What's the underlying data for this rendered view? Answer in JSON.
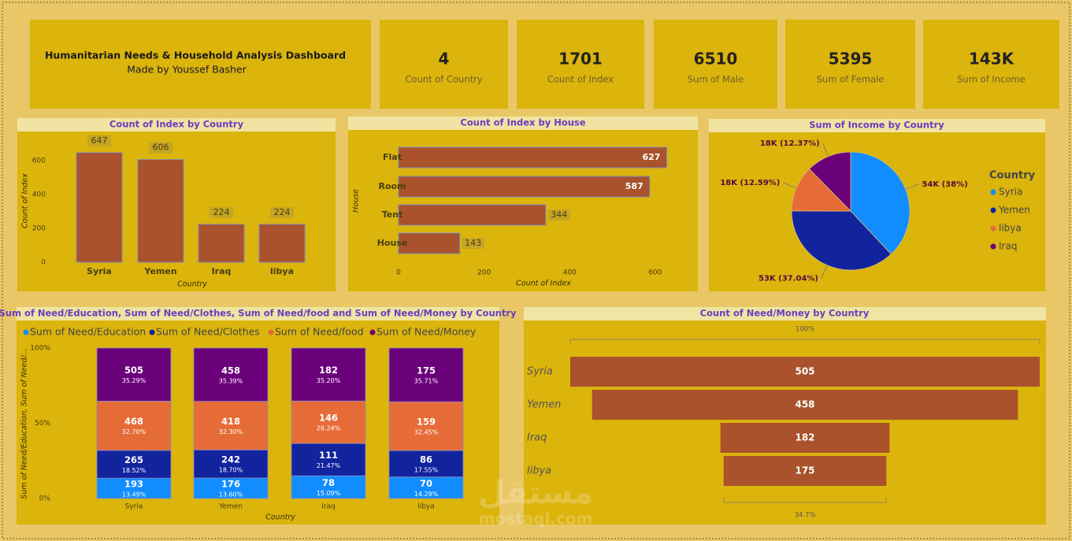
{
  "header": {
    "title": "Humanitarian Needs & Household Analysis Dashboard",
    "subtitle": "Made by Youssef Basher"
  },
  "kpis": [
    {
      "value": 4,
      "label": "Count of Country"
    },
    {
      "value": 1701,
      "label": "Count of Index"
    },
    {
      "value": 6510,
      "label": "Sum of Male"
    },
    {
      "value": 5395,
      "label": "Sum of Female"
    },
    {
      "value": 143000,
      "value_label": "143K",
      "label": "Sum of Income"
    }
  ],
  "watermark": [
    "مستقل",
    "mostaql.com"
  ],
  "chart_data": [
    {
      "type": "bar",
      "title": "Count of Index by Country",
      "categories": [
        "Syria",
        "Yemen",
        "Iraq",
        "libya"
      ],
      "values": [
        647,
        606,
        224,
        224
      ],
      "color": "#a9522b",
      "ylim": [
        0,
        700
      ],
      "yticks": [
        0,
        200,
        400,
        600
      ],
      "x_label": "Country",
      "y_label": "Count of Index"
    },
    {
      "type": "hbar",
      "title": "Count of Index by House",
      "categories": [
        "Flat",
        "Room",
        "Tent",
        "House"
      ],
      "values": [
        627,
        587,
        344,
        143
      ],
      "color": "#a9522b",
      "xlim": [
        0,
        650
      ],
      "xticks": [
        0,
        200,
        400,
        600
      ],
      "x_label": "Count of Index",
      "y_label": "House"
    },
    {
      "type": "pie",
      "title": "Sum of Income by Country",
      "categories": [
        "Syria",
        "Yemen",
        "libya",
        "Iraq"
      ],
      "values": [
        38,
        37.04,
        12.59,
        12.37
      ],
      "value_labels": [
        "54K (38%)",
        "53K (37.04%)",
        "18K (12.59%)",
        "18K (12.37%)"
      ],
      "colors": [
        "#118dff",
        "#12239e",
        "#e66c37",
        "#6b007b"
      ],
      "legend_title": "Country"
    },
    {
      "type": "stacked100",
      "title": "Sum of Need/Education, Sum of Need/Clothes, Sum of Need/food and Sum of Need/Money by Country",
      "categories": [
        "Syria",
        "Yemen",
        "Iraq",
        "libya"
      ],
      "series": [
        {
          "name": "Sum of Need/Education",
          "color": "#118dff",
          "values": [
            193,
            176,
            78,
            70
          ],
          "share_labels": [
            "13.49%",
            "13.60%",
            "15.09%",
            "14.29%"
          ]
        },
        {
          "name": "Sum of Need/Clothes",
          "color": "#12239e",
          "values": [
            265,
            242,
            111,
            86
          ],
          "share_labels": [
            "18.52%",
            "18.70%",
            "21.47%",
            "17.55%"
          ]
        },
        {
          "name": "Sum of Need/food",
          "color": "#e66c37",
          "values": [
            468,
            418,
            146,
            159
          ],
          "share_labels": [
            "32.70%",
            "32.30%",
            "28.24%",
            "32.45%"
          ]
        },
        {
          "name": "Sum of Need/Money",
          "color": "#6b007b",
          "values": [
            505,
            458,
            182,
            175
          ],
          "share_labels": [
            "35.29%",
            "35.39%",
            "35.20%",
            "35.71%"
          ]
        }
      ],
      "ylim": [
        0,
        100
      ],
      "yticks": [
        {
          "value": 0,
          "label": "0%"
        },
        {
          "value": 50,
          "label": "50%"
        },
        {
          "value": 100,
          "label": "100%"
        }
      ],
      "x_label": "Country",
      "y_label": "Sum of Need/Education, Sum of Need/..."
    },
    {
      "type": "funnel",
      "title": "Count of Need/Money by Country",
      "categories": [
        "Syria",
        "Yemen",
        "Iraq",
        "libya"
      ],
      "values": [
        505,
        458,
        182,
        175
      ],
      "color": "#a9522b",
      "top_label": "100%",
      "bottom_label": "34.7%"
    }
  ]
}
